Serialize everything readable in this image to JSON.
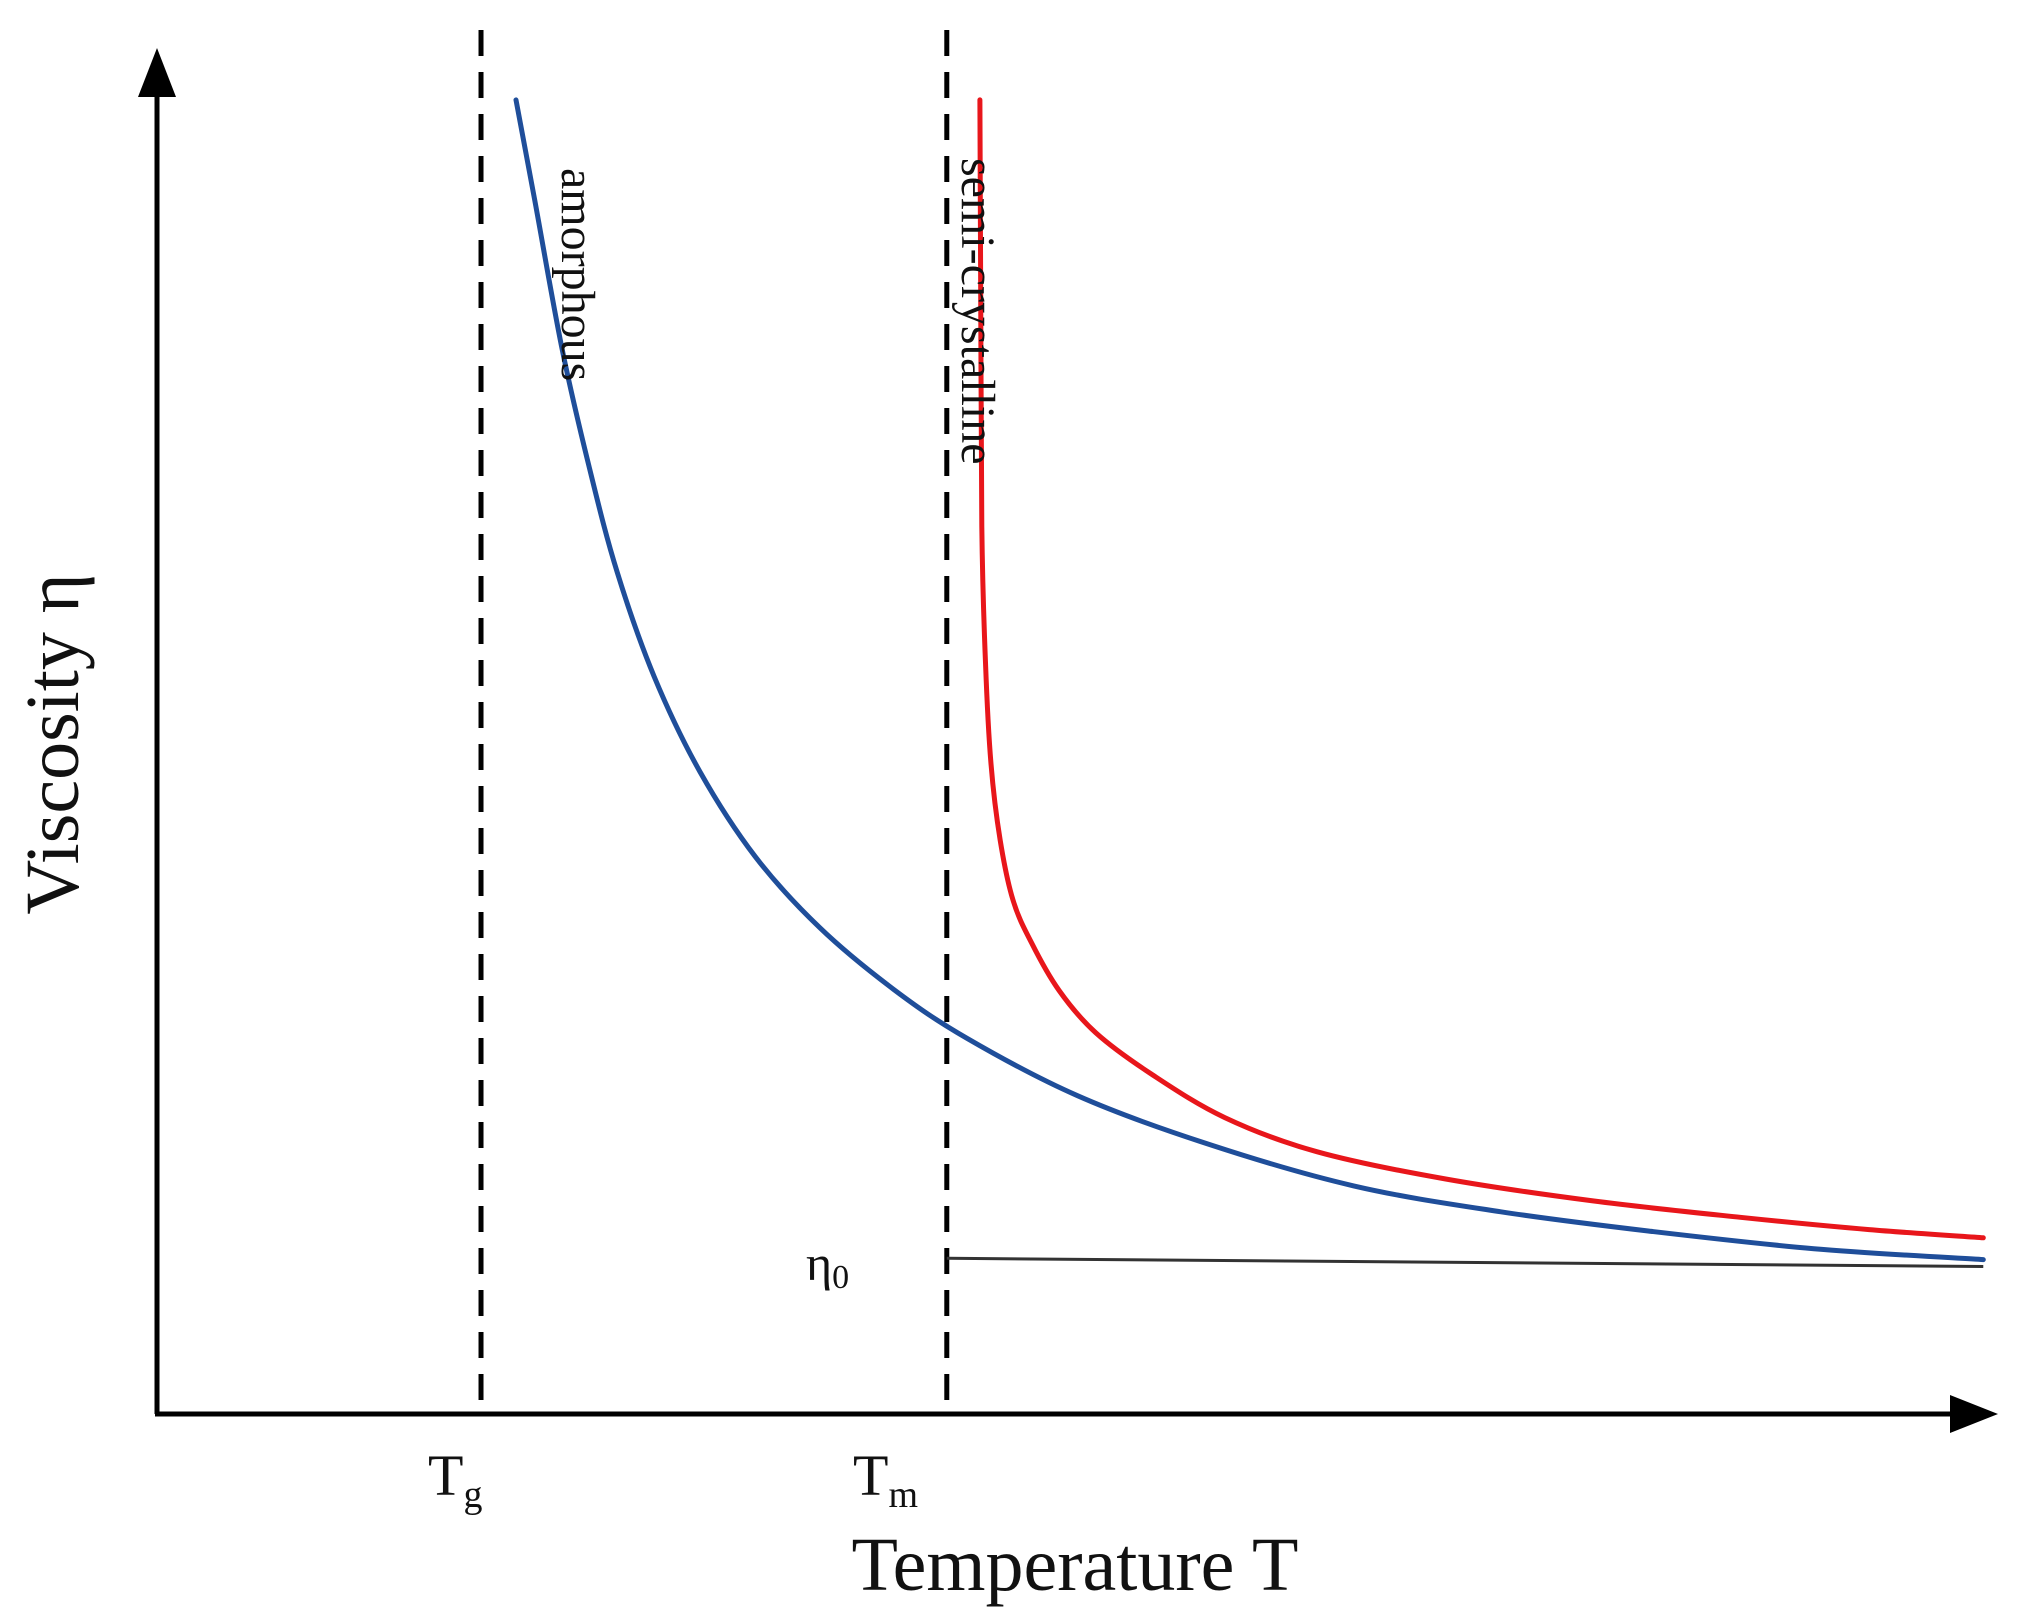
{
  "chart_data": {
    "type": "line",
    "title": "",
    "xlabel": "Temperature T",
    "ylabel": "Viscosity η",
    "grid": false,
    "xlim": [
      0,
      100
    ],
    "ylim": [
      0,
      100
    ],
    "x_ticks_labeled_only": true,
    "reference_lines": [
      {
        "name": "Tg",
        "label_main": "T",
        "label_sub": "g",
        "x": 17.6
      },
      {
        "name": "Tm",
        "label_main": "T",
        "label_sub": "m",
        "x": 42.9
      }
    ],
    "eta0": {
      "label_main": "η",
      "label_sub": "0",
      "x": [
        42.9,
        99.2
      ],
      "y": [
        11.4,
        10.8
      ]
    },
    "series": [
      {
        "name": "amorphous",
        "color": "#1f4e9a",
        "x": [
          19.5,
          20.5,
          22.0,
          23.5,
          25.0,
          27.0,
          29.5,
          32.5,
          36.0,
          40.0,
          44.0,
          50.0,
          57.0,
          65.0,
          73.0,
          81.0,
          90.0,
          99.2
        ],
        "y": [
          96.2,
          89.0,
          78.0,
          69.2,
          61.6,
          54.0,
          47.0,
          40.8,
          35.6,
          31.1,
          27.5,
          23.3,
          19.8,
          16.7,
          14.8,
          13.4,
          12.1,
          11.3
        ]
      },
      {
        "name": "semi-crystalline",
        "color": "#e8161b",
        "x": [
          44.7,
          44.75,
          44.8,
          45.0,
          45.3,
          45.8,
          46.5,
          47.5,
          49.0,
          51.0,
          54.0,
          58.0,
          63.0,
          70.0,
          78.0,
          86.0,
          93.0,
          99.2
        ],
        "y": [
          96.2,
          80.0,
          65.0,
          55.0,
          47.6,
          42.0,
          37.6,
          34.5,
          31.0,
          27.9,
          24.9,
          21.7,
          19.2,
          17.2,
          15.6,
          14.4,
          13.5,
          12.9
        ]
      }
    ],
    "annotations": [
      {
        "series": "amorphous",
        "text": "amorphous",
        "orientation": "vertical"
      },
      {
        "series": "semi-crystalline",
        "text": "semi-crystalline",
        "orientation": "vertical"
      }
    ]
  }
}
